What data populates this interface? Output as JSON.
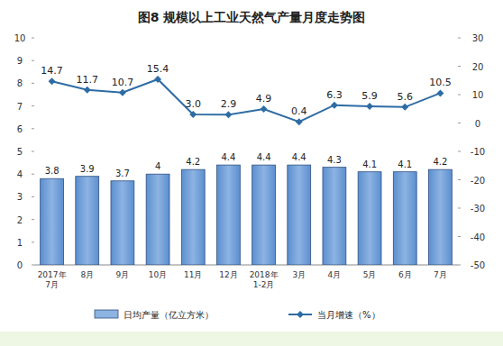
{
  "chart_data": {
    "type": "bar",
    "title": "图8 规模以上工业天然气产量月度走势图",
    "categories": [
      "2017年7月",
      "8月",
      "9月",
      "10月",
      "11月",
      "12月",
      "2018年1-2月",
      "3月",
      "4月",
      "5月",
      "6月",
      "7月"
    ],
    "series": [
      {
        "name": "日均产量（亿立方米）",
        "type": "bar",
        "color": "#8db3e2",
        "values": [
          3.8,
          3.9,
          3.7,
          4.0,
          4.2,
          4.4,
          4.4,
          4.4,
          4.3,
          4.1,
          4.1,
          4.2
        ]
      },
      {
        "name": "当月增速（%）",
        "type": "line",
        "axis": "y2",
        "color": "#2e6ca4",
        "marker": "diamond",
        "values": [
          14.7,
          11.7,
          10.7,
          15.4,
          3.0,
          2.9,
          4.9,
          0.4,
          6.3,
          5.9,
          5.6,
          10.5
        ],
        "value_labels": [
          "14.7",
          "11.7",
          "10.7",
          "15.4",
          "3.0",
          "2.9",
          "4.9",
          "0.4",
          "6.3",
          "5.9",
          "5.6",
          "10.5"
        ]
      }
    ],
    "ylim": [
      0,
      10
    ],
    "yticks": [
      0,
      1,
      2,
      3,
      4,
      5,
      6,
      7,
      8,
      9,
      10
    ],
    "y2lim": [
      -50,
      30
    ],
    "y2ticks": [
      -50,
      -40,
      -30,
      -20,
      -10,
      0,
      10,
      20,
      30
    ],
    "grid": false,
    "legend": "bottom",
    "data_labels": true
  }
}
